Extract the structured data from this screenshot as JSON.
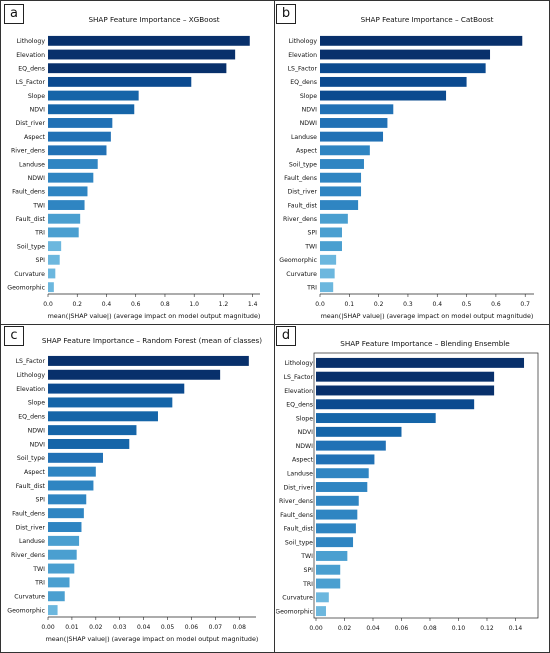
{
  "chart_data": [
    {
      "panel": "a",
      "type": "bar",
      "orientation": "horizontal",
      "title": "SHAP Feature Importance – XGBoost",
      "xlabel": "mean(|SHAP value|) (average impact on model output magnitude)",
      "xlim": [
        0,
        1.45
      ],
      "xticks": [
        "0.0",
        "0.2",
        "0.4",
        "0.6",
        "0.8",
        "1.0",
        "1.2",
        "1.4"
      ],
      "categories": [
        "Lithology",
        "Elevation",
        "EQ_dens",
        "LS_Factor",
        "Slope",
        "NDVI",
        "Dist_river",
        "Aspect",
        "River_dens",
        "Landuse",
        "NDWI",
        "Fault_dens",
        "TWI",
        "Fault_dist",
        "TRI",
        "Soil_type",
        "SPI",
        "Curvature",
        "Geomorphic"
      ],
      "values": [
        1.38,
        1.28,
        1.22,
        0.98,
        0.62,
        0.59,
        0.44,
        0.43,
        0.4,
        0.34,
        0.31,
        0.27,
        0.25,
        0.22,
        0.21,
        0.09,
        0.08,
        0.05,
        0.04
      ]
    },
    {
      "panel": "b",
      "type": "bar",
      "orientation": "horizontal",
      "title": "SHAP Feature Importance – CatBoost",
      "xlabel": "mean(|SHAP value|) (average impact on model output magnitude)",
      "xlim": [
        0,
        0.73
      ],
      "xticks": [
        "0.0",
        "0.1",
        "0.2",
        "0.3",
        "0.4",
        "0.5",
        "0.6",
        "0.7"
      ],
      "categories": [
        "Lithology",
        "Elevation",
        "LS_Factor",
        "EQ_dens",
        "Slope",
        "NDVI",
        "NDWI",
        "Landuse",
        "Aspect",
        "Soil_type",
        "Fault_dens",
        "Dist_river",
        "Fault_dist",
        "River_dens",
        "SPI",
        "TWI",
        "Geomorphic",
        "Curvature",
        "TRI"
      ],
      "values": [
        0.69,
        0.58,
        0.565,
        0.5,
        0.43,
        0.25,
        0.23,
        0.215,
        0.17,
        0.15,
        0.14,
        0.14,
        0.13,
        0.095,
        0.075,
        0.075,
        0.055,
        0.05,
        0.045
      ]
    },
    {
      "panel": "c",
      "type": "bar",
      "orientation": "horizontal",
      "title": "SHAP Feature Importance – Random Forest (mean of classes)",
      "xlabel": "mean(|SHAP value|) (average impact on model output magnitude)",
      "xlim": [
        0,
        0.087
      ],
      "xticks": [
        "0.00",
        "0.01",
        "0.02",
        "0.03",
        "0.04",
        "0.05",
        "0.06",
        "0.07",
        "0.08"
      ],
      "categories": [
        "LS_Factor",
        "Lithology",
        "Elevation",
        "Slope",
        "EQ_dens",
        "NDWI",
        "NDVI",
        "Soil_type",
        "Aspect",
        "Fault_dist",
        "SPI",
        "Fault_dens",
        "Dist_river",
        "Landuse",
        "River_dens",
        "TWI",
        "TRI",
        "Curvature",
        "Geomorphic"
      ],
      "values": [
        0.084,
        0.072,
        0.057,
        0.052,
        0.046,
        0.037,
        0.034,
        0.023,
        0.02,
        0.019,
        0.016,
        0.015,
        0.014,
        0.013,
        0.012,
        0.011,
        0.009,
        0.007,
        0.004
      ]
    },
    {
      "panel": "d",
      "type": "bar",
      "orientation": "horizontal",
      "title": "SHAP Feature Importance – Blending Ensemble",
      "xlabel": "",
      "xlim": [
        0,
        0.153
      ],
      "xticks": [
        "0.00",
        "0.02",
        "0.04",
        "0.06",
        "0.08",
        "0.10",
        "0.12",
        "0.14"
      ],
      "categories": [
        "Lithology",
        "LS_Factor",
        "Elevation",
        "EQ_dens",
        "Slope",
        "NDVI",
        "NDWI",
        "Aspect",
        "Landuse",
        "Dist_river",
        "River_dens",
        "Fault_dens",
        "Fault_dist",
        "Soil_type",
        "TWI",
        "SPI",
        "TRI",
        "Curvature",
        "Geomorphic"
      ],
      "values": [
        0.146,
        0.125,
        0.125,
        0.111,
        0.084,
        0.06,
        0.049,
        0.041,
        0.037,
        0.036,
        0.03,
        0.029,
        0.028,
        0.026,
        0.022,
        0.017,
        0.017,
        0.009,
        0.007
      ]
    }
  ],
  "colors": {
    "bar_gradient": [
      "#08306b",
      "#0b4a8f",
      "#1565a8",
      "#2171b5",
      "#2f85c2",
      "#4a9fd0",
      "#6cb7de"
    ],
    "axis": "#222222",
    "text": "#111111"
  }
}
